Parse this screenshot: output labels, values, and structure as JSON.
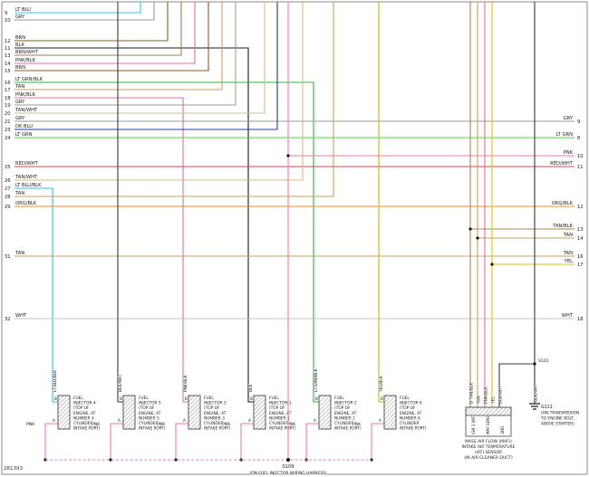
{
  "diagram_id": "281393",
  "wire_colors": {
    "LT BLU": "#35c9e2",
    "GRY": "#9a9a9a",
    "BRN": "#8f5a28",
    "BLK": "#1a1a1a",
    "BRN/WHT": "#a97b4f",
    "PNK/BLK": "#e86ca0",
    "LT GRN/BLK": "#27b834",
    "TAN": "#c9a063",
    "TAN/WHT": "#d8b98a",
    "DK BLU": "#2038a8",
    "LT GRN": "#45d83e",
    "RED/WHT": "#e4454f",
    "LT BLU/BLK": "#2fc3d8",
    "ORG/BLK": "#ef8f1f",
    "WHT": "#c6c6c6",
    "PNK": "#f27ba5",
    "YEL": "#d8c800",
    "YEL/BLK": "#c9b700",
    "TAN/BLK": "#a8854f",
    "BLK/WHT": "#3a3a3a"
  },
  "left_pins": [
    {
      "pin": "9",
      "label": "LT BLU"
    },
    {
      "pin": "10",
      "label": "GRY"
    },
    {
      "pin": "12",
      "label": "BRN"
    },
    {
      "pin": "11",
      "label": "BLK"
    },
    {
      "pin": "13",
      "label": "BRN/WHT"
    },
    {
      "pin": "14",
      "label": "PNK/BLK"
    },
    {
      "pin": "15",
      "label": "BRN"
    },
    {
      "pin": "16",
      "label": "LT GRN/BLK"
    },
    {
      "pin": "17",
      "label": "TAN"
    },
    {
      "pin": "18",
      "label": "PNK/BLK"
    },
    {
      "pin": "19",
      "label": "GRY"
    },
    {
      "pin": "20",
      "label": "TAN/WHT"
    },
    {
      "pin": "21",
      "label": "GRY"
    },
    {
      "pin": "23",
      "label": "DK BLU"
    },
    {
      "pin": "24",
      "label": "LT GRN"
    },
    {
      "pin": "25",
      "label": "RED/WHT"
    },
    {
      "pin": "26",
      "label": "TAN/WHT"
    },
    {
      "pin": "27",
      "label": "LT BLU/BLK"
    },
    {
      "pin": "28",
      "label": "TAN"
    },
    {
      "pin": "29",
      "label": "ORG/BLK"
    },
    {
      "pin": "31",
      "label": "TAN"
    },
    {
      "pin": "32",
      "label": "WHT"
    }
  ],
  "right_pins": [
    {
      "pin": "9",
      "label": "GRY"
    },
    {
      "pin": "8",
      "label": "LT GRN"
    },
    {
      "pin": "10",
      "label": "PNK"
    },
    {
      "pin": "11",
      "label": "RED/WHT"
    },
    {
      "pin": "12",
      "label": "ORG/BLK"
    },
    {
      "pin": "13",
      "label": "TAN/BLK"
    },
    {
      "pin": "14",
      "label": "TAN"
    },
    {
      "pin": "16",
      "label": "TAN"
    },
    {
      "pin": "17",
      "label": "YEL"
    },
    {
      "pin": "18",
      "label": "WHT"
    }
  ],
  "injectors": [
    {
      "name": "FUEL INJECTOR 4",
      "pin_b": "B",
      "pin_a": "A",
      "wire_b": "LT BLU/BLK",
      "wire_a": "PNK",
      "caption": [
        "FUEL",
        "INJECTOR 4",
        "(TOP OF",
        "ENGINE, AT",
        "NUMBER 4",
        "CYLINDER",
        "INTAKE PORT)"
      ]
    },
    {
      "name": "FUEL INJECTOR 5",
      "pin_b": "B",
      "pin_a": "A",
      "wire_b": "BLK/WHT",
      "wire_a": "PNK",
      "caption": [
        "FUEL",
        "INJECTOR 5",
        "(TOP OF",
        "ENGINE, AT",
        "NUMBER 5",
        "CYLINDER",
        "INTAKE PORT)"
      ]
    },
    {
      "name": "FUEL INJECTOR 3",
      "pin_b": "B",
      "pin_a": "A",
      "wire_b": "PNK/BLK",
      "wire_a": "PNK",
      "caption": [
        "FUEL",
        "INJECTOR 3",
        "(TOP OF",
        "ENGINE, AT",
        "NUMBER 3",
        "CYLINDER",
        "INTAKE PORT)"
      ]
    },
    {
      "name": "FUEL INJECTOR 1",
      "pin_b": "B",
      "pin_a": "A",
      "wire_b": "BLK",
      "wire_a": "PNK",
      "caption": [
        "FUEL",
        "INJECTOR 1",
        "(TOP OF",
        "ENGINE, AT",
        "NUMBER 1",
        "CYLINDER",
        "INTAKE PORT)"
      ]
    },
    {
      "name": "FUEL INJECTOR 2",
      "pin_b": "B",
      "pin_a": "A",
      "wire_b": "LT GRN/BLK",
      "wire_a": "PNK",
      "caption": [
        "FUEL",
        "INJECTOR 2",
        "(TOP OF",
        "ENGINE, AT",
        "NUMBER 2",
        "CYLINDER",
        "INTAKE PORT)"
      ]
    },
    {
      "name": "FUEL INJECTOR 6",
      "pin_b": "B",
      "pin_a": "A",
      "wire_b": "YEL/BLK",
      "wire_a": "PNK",
      "caption": [
        "FUEL",
        "INJECTOR 6",
        "(TOP OF",
        "ENGINE, AT",
        "NUMBER 6",
        "CYLINDER",
        "INTAKE PORT)"
      ]
    }
  ],
  "maf_sensor": {
    "wires": [
      {
        "pin": "D",
        "label": "TAN/BLK"
      },
      {
        "pin": "",
        "label": "TAN"
      },
      {
        "pin": "",
        "label": "PNK/BLK"
      },
      {
        "pin": "",
        "label": "YEL"
      },
      {
        "pin": "",
        "label": "BLK/WHT"
      }
    ],
    "pin_labels": [
      "IGN 1 VAT",
      "MAF SENS",
      "GND"
    ],
    "caption": [
      "MASS AIR FLOW (MAF)/",
      "INTAKE AIR TEMPERATURE",
      "(IAT) SENSOR",
      "(IN AIR CLEANER DUCT)"
    ]
  },
  "splices": {
    "s109": {
      "label": "S109",
      "note": "(ON FUEL INJECTOR WIRING HARNESS)"
    },
    "s101": {
      "label": "S101"
    }
  },
  "ground": {
    "label": "G111",
    "wire": "BLK/WHT",
    "note": [
      "(ON TRANSMISSION",
      "TO ENGINE BOLT,",
      "ABOVE STARTER)"
    ]
  }
}
